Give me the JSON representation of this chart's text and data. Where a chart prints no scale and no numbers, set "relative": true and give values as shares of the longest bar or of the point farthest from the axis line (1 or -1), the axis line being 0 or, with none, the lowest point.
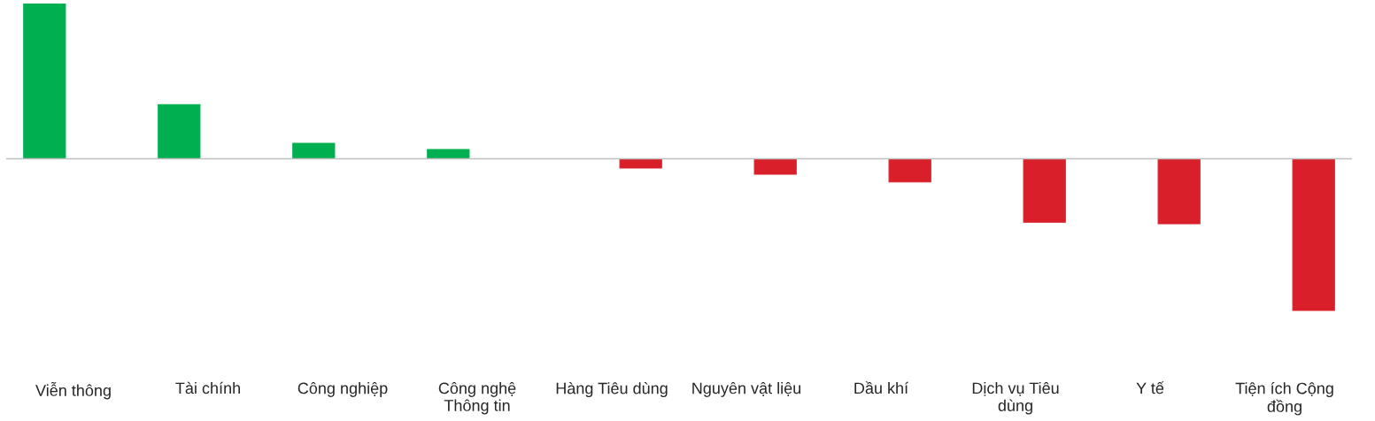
{
  "chart_data": {
    "type": "bar",
    "relative": true,
    "categories": [
      "Viễn thông",
      "Tài chính",
      "Công nghiệp",
      "Công nghệ Thông tin",
      "Hàng Tiêu dùng",
      "Nguyên vật liệu",
      "Dầu khí",
      "Dịch vụ Tiêu dùng",
      "Y tế",
      "Tiện ích Cộng đồng"
    ],
    "series": [
      {
        "color": "#00b050",
        "values": [
          1,
          0.35,
          0.1,
          0.06,
          null,
          null,
          null,
          null,
          null,
          null
        ]
      },
      {
        "color": "#d9202a",
        "values": [
          null,
          null,
          null,
          null,
          -0.06,
          -0.1,
          -0.15,
          -0.41,
          -0.42,
          -0.98
        ]
      }
    ],
    "grid": false
  }
}
